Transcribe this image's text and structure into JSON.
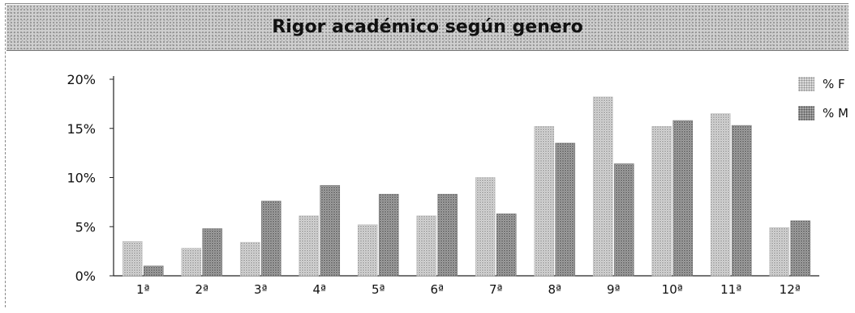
{
  "chart_data": {
    "type": "bar",
    "title": "Rigor académico según genero",
    "categories": [
      "1ª",
      "2ª",
      "3ª",
      "4ª",
      "5ª",
      "6ª",
      "7ª",
      "8ª",
      "9ª",
      "10ª",
      "11ª",
      "12ª"
    ],
    "series": [
      {
        "name": "% F",
        "values": [
          3.5,
          2.8,
          3.4,
          6.1,
          5.2,
          6.1,
          10.0,
          15.2,
          18.2,
          15.2,
          16.5,
          4.9
        ]
      },
      {
        "name": "% M",
        "values": [
          1.0,
          4.8,
          7.6,
          9.2,
          8.3,
          8.3,
          6.3,
          13.5,
          11.4,
          15.8,
          15.3,
          5.6
        ]
      }
    ],
    "yticks": [
      "0%",
      "5%",
      "10%",
      "15%",
      "20%"
    ],
    "ylim": [
      0,
      20
    ],
    "grid": false,
    "legend_position": "top-right",
    "colors": {
      "F": "#dcdcdc",
      "M": "#a7a7a7"
    }
  }
}
